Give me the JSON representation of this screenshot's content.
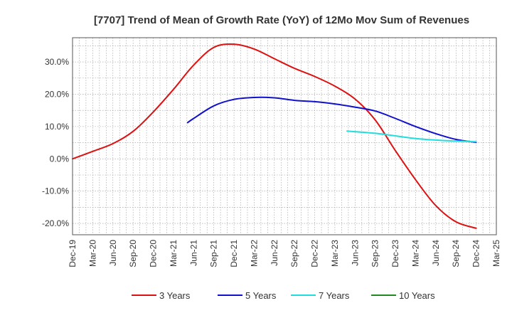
{
  "chart_data": {
    "type": "line",
    "title": "[7707]  Trend of Mean of Growth Rate (YoY) of 12Mo Mov Sum of Revenues",
    "xlabel": "",
    "ylabel": "",
    "x_categories": [
      "Dec-19",
      "Mar-20",
      "Jun-20",
      "Sep-20",
      "Dec-20",
      "Mar-21",
      "Jun-21",
      "Sep-21",
      "Dec-21",
      "Mar-22",
      "Jun-22",
      "Sep-22",
      "Dec-22",
      "Mar-23",
      "Jun-23",
      "Sep-23",
      "Dec-23",
      "Mar-24",
      "Jun-24",
      "Sep-24",
      "Dec-24",
      "Mar-25"
    ],
    "y_ticks": [
      30,
      20,
      10,
      0,
      -10,
      -20
    ],
    "y_tick_labels": [
      "30.0%",
      "20.0%",
      "10.0%",
      "0.0%",
      "-10.0%",
      "-20.0%"
    ],
    "ylim": [
      -23.5,
      37.5
    ],
    "grid": true,
    "legend_position": "bottom",
    "series": [
      {
        "name": "3 Years",
        "color": "#dd1111",
        "points": [
          [
            0,
            0.0
          ],
          [
            1,
            2.3
          ],
          [
            2,
            4.7
          ],
          [
            3,
            8.5
          ],
          [
            4,
            14.5
          ],
          [
            5,
            21.5
          ],
          [
            6,
            29.0
          ],
          [
            7,
            34.5
          ],
          [
            8,
            35.5
          ],
          [
            9,
            34.0
          ],
          [
            10,
            31.0
          ],
          [
            11,
            28.0
          ],
          [
            12,
            25.5
          ],
          [
            13,
            22.5
          ],
          [
            14,
            18.5
          ],
          [
            15,
            12.0
          ],
          [
            16,
            2.5
          ],
          [
            17,
            -6.5
          ],
          [
            18,
            -14.5
          ],
          [
            19,
            -19.5
          ],
          [
            20,
            -21.5
          ]
        ]
      },
      {
        "name": "5 Years",
        "color": "#1111cc",
        "points": [
          [
            5.7,
            11.2
          ],
          [
            6,
            12.5
          ],
          [
            7,
            16.4
          ],
          [
            8,
            18.4
          ],
          [
            9,
            19.0
          ],
          [
            10,
            18.9
          ],
          [
            11,
            18.1
          ],
          [
            12,
            17.7
          ],
          [
            13,
            17.0
          ],
          [
            14,
            16.0
          ],
          [
            15,
            14.8
          ],
          [
            16,
            12.5
          ],
          [
            17,
            10.0
          ],
          [
            18,
            7.8
          ],
          [
            19,
            6.0
          ],
          [
            20,
            5.1
          ]
        ]
      },
      {
        "name": "7 Years",
        "color": "#22dddd",
        "points": [
          [
            13.6,
            8.6
          ],
          [
            15,
            7.9
          ],
          [
            16,
            7.1
          ],
          [
            17,
            6.3
          ],
          [
            18,
            5.8
          ],
          [
            19,
            5.5
          ],
          [
            20,
            5.3
          ]
        ]
      },
      {
        "name": "10 Years",
        "color": "#228822",
        "points": []
      }
    ]
  }
}
